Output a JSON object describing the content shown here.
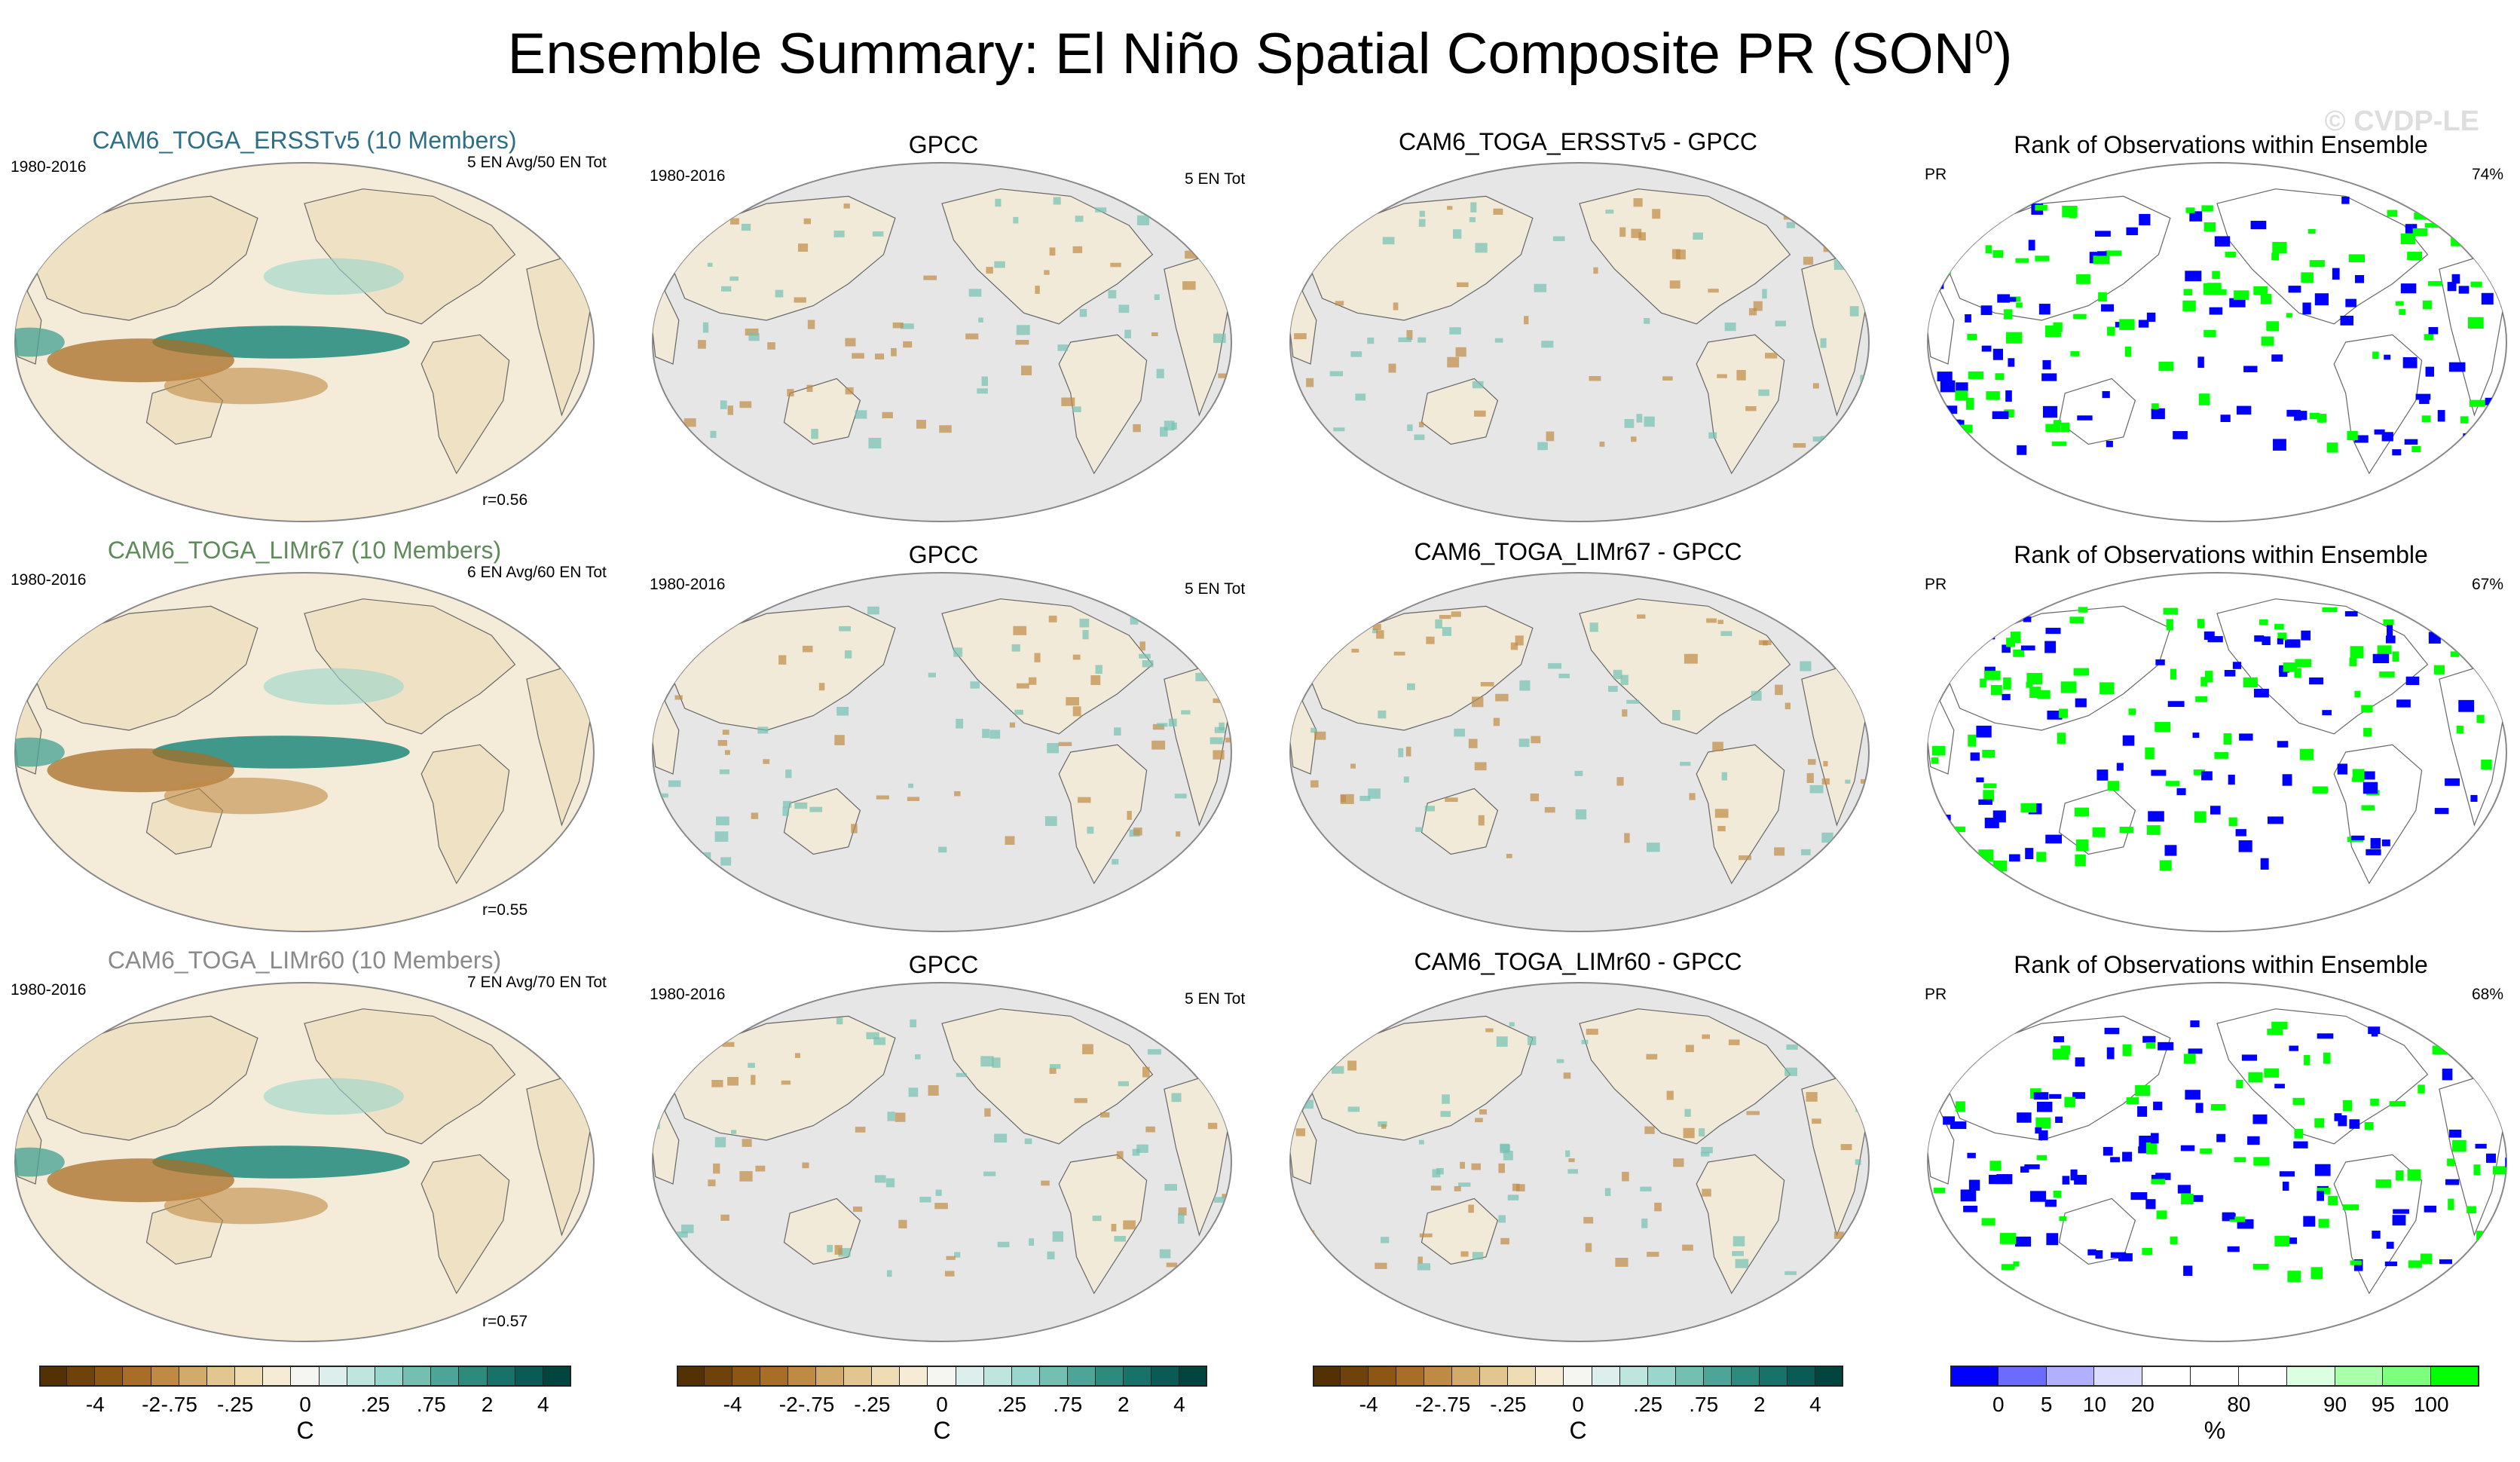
{
  "title": {
    "main": "Ensemble Summary: El Niño Spatial Composite PR (SON",
    "superscript": "0",
    "close": ")"
  },
  "watermark": "© CVDP-LE",
  "rows": [
    {
      "model": {
        "title": "CAM6_TOGA_ERSSTv5 (10 Members)",
        "title_color": "#2e6e86",
        "years": "1980-2016",
        "counts": "5 EN Avg/50 EN Tot",
        "corr": "r=0.56"
      },
      "obs": {
        "title": "GPCC",
        "years": "1980-2016",
        "counts": "5 EN Tot"
      },
      "diff": {
        "title": "CAM6_TOGA_ERSSTv5 - GPCC"
      },
      "rank": {
        "title": "Rank of Observations within Ensemble",
        "variable": "PR",
        "percent": "74%"
      }
    },
    {
      "model": {
        "title": "CAM6_TOGA_LIMr67 (10 Members)",
        "title_color": "#5f8a5a",
        "years": "1980-2016",
        "counts": "6 EN Avg/60 EN Tot",
        "corr": "r=0.55"
      },
      "obs": {
        "title": "GPCC",
        "years": "1980-2016",
        "counts": "5 EN Tot"
      },
      "diff": {
        "title": "CAM6_TOGA_LIMr67 - GPCC"
      },
      "rank": {
        "title": "Rank of Observations within Ensemble",
        "variable": "PR",
        "percent": "67%"
      }
    },
    {
      "model": {
        "title": "CAM6_TOGA_LIMr60 (10 Members)",
        "title_color": "#8a8a8a",
        "years": "1980-2016",
        "counts": "7 EN Avg/70 EN Tot",
        "corr": "r=0.57"
      },
      "obs": {
        "title": "GPCC",
        "years": "1980-2016",
        "counts": "5 EN Tot"
      },
      "diff": {
        "title": "CAM6_TOGA_LIMr60 - GPCC"
      },
      "rank": {
        "title": "Rank of Observations within Ensemble",
        "variable": "PR",
        "percent": "68%"
      }
    }
  ],
  "colorbar_brbg": {
    "colors": [
      "#543005",
      "#6f420c",
      "#8c5614",
      "#a86d27",
      "#bf8b44",
      "#d2ab6a",
      "#e1c78f",
      "#eedcb4",
      "#f6ecd6",
      "#f5f5f2",
      "#dcefec",
      "#bfe5df",
      "#9ad6cb",
      "#73c0b2",
      "#4ca597",
      "#2d8b7e",
      "#17726a",
      "#0a5b55",
      "#01453e"
    ],
    "ticks": [
      "-4",
      "-2",
      "-.75",
      "-.25",
      "0",
      ".25",
      ".75",
      "2",
      "4"
    ],
    "unit": "C"
  },
  "colorbar_rank": {
    "colors": [
      "#0000ff",
      "#6b6bff",
      "#b0b0ff",
      "#dcdcff",
      "#ffffff",
      "#ffffff",
      "#ffffff",
      "#dbffe0",
      "#aaffaa",
      "#7cff7c",
      "#00ff00"
    ],
    "ticks": [
      "0",
      "5",
      "10",
      "20",
      "80",
      "90",
      "95",
      "100"
    ],
    "unit": "%"
  },
  "icons": {
    "map": "robinson-world-map-icon"
  }
}
